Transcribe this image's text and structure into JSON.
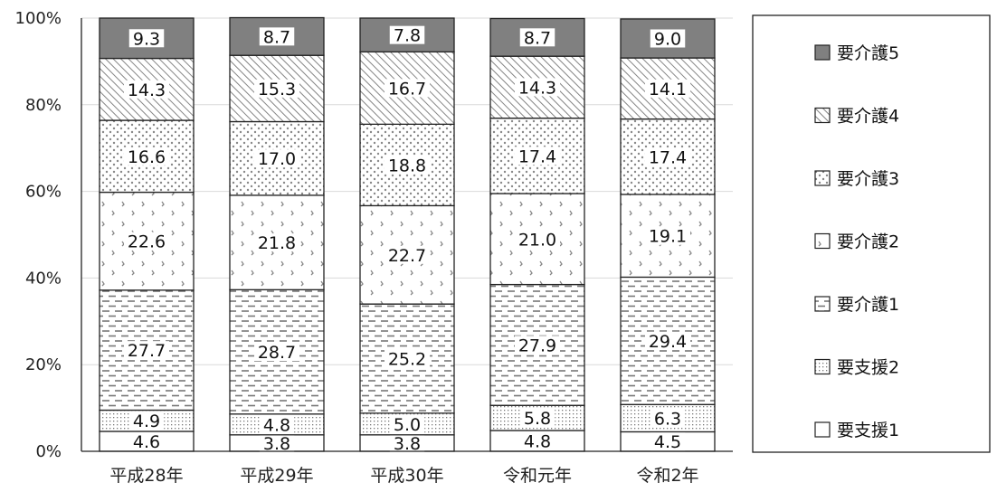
{
  "chart_data": {
    "type": "bar",
    "stacked": true,
    "normalized": true,
    "title": "",
    "xlabel": "",
    "ylabel": "",
    "ylim": [
      0,
      100
    ],
    "yticks": [
      "0%",
      "20%",
      "40%",
      "60%",
      "80%",
      "100%"
    ],
    "grid": true,
    "legend_position": "right",
    "categories": [
      "平成28年",
      "平成29年",
      "平成30年",
      "令和元年",
      "令和2年"
    ],
    "series": [
      {
        "name": "要支援1",
        "values": [
          4.6,
          3.8,
          3.8,
          4.8,
          4.5
        ],
        "fill": "plain"
      },
      {
        "name": "要支援2",
        "values": [
          4.9,
          4.8,
          5.0,
          5.8,
          6.3
        ],
        "fill": "fine-dots"
      },
      {
        "name": "要介護1",
        "values": [
          27.7,
          28.7,
          25.2,
          27.9,
          29.4
        ],
        "fill": "dashes"
      },
      {
        "name": "要介護2",
        "values": [
          22.6,
          21.8,
          22.7,
          21.0,
          19.1
        ],
        "fill": "chevrons"
      },
      {
        "name": "要介護3",
        "values": [
          16.6,
          17.0,
          18.8,
          17.4,
          17.4
        ],
        "fill": "dots"
      },
      {
        "name": "要介護4",
        "values": [
          14.3,
          15.3,
          16.7,
          14.3,
          14.1
        ],
        "fill": "diagonal"
      },
      {
        "name": "要介護5",
        "values": [
          9.3,
          8.7,
          7.8,
          8.7,
          9.0
        ],
        "fill": "dark-gray"
      }
    ],
    "colors": {
      "dark": "#808080",
      "outline": "#222222",
      "grid": "#d9d9d9"
    }
  }
}
